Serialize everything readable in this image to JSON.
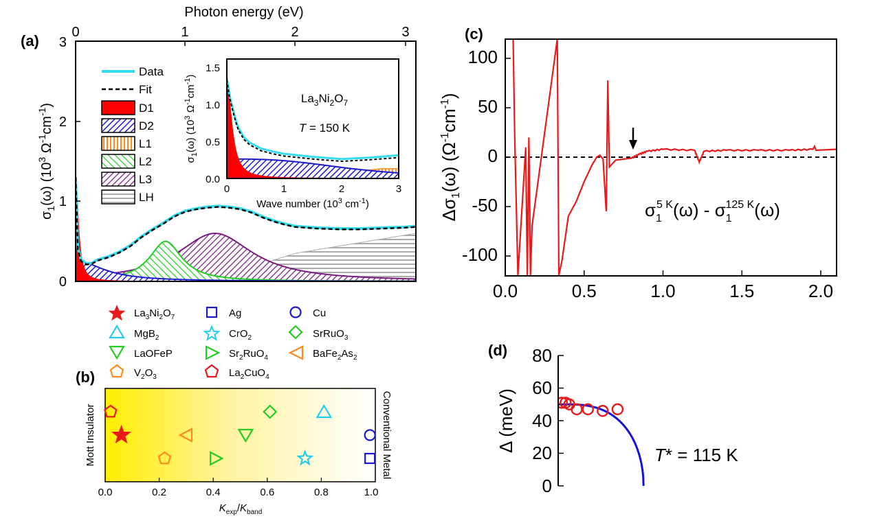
{
  "colors": {
    "data": "#33ddee",
    "fit": "#000000",
    "D1": "#ff0000",
    "D2": "#1a1acc",
    "L1": "#ff8a1a",
    "L2": "#22cc22",
    "L3": "#7a1a80",
    "LH": "#aaaaaa",
    "diff": "#e8191a",
    "gap_data": "#e8191a",
    "gap_fit": "#1111dd",
    "kr_yellow": "#ffee00",
    "cyan": "#22ccee",
    "blue": "#1a1acc",
    "green": "#22cc22",
    "orange": "#ff8a1a",
    "red": "#e8191a"
  },
  "chart_data": [
    {
      "panel": "(a)",
      "type": "area",
      "title": "",
      "top_axis_label": "Photon energy (eV)",
      "top_ticks": [
        "0",
        "1",
        "2",
        "3"
      ],
      "ylabel": "σ1(ω) (10³ Ω⁻¹cm⁻¹)",
      "y_ticks": [
        "0",
        "1",
        "2",
        "3"
      ],
      "xlim_eV": [
        0,
        3.1
      ],
      "ylim": [
        0,
        3
      ],
      "legend": [
        "Data",
        "Fit",
        "D1",
        "D2",
        "L1",
        "L2",
        "L3",
        "LH"
      ],
      "series": [
        {
          "name": "Data",
          "x_eV": [
            0,
            0.02,
            0.05,
            0.1,
            0.15,
            0.2,
            0.3,
            0.4,
            0.5,
            0.6,
            0.7,
            0.8,
            0.9,
            1.0,
            1.1,
            1.2,
            1.3,
            1.4,
            1.5,
            1.6,
            1.7,
            1.8,
            1.9,
            2.0,
            2.2,
            2.4,
            2.6,
            2.8,
            3.0,
            3.1
          ],
          "values": [
            1.3,
            0.42,
            0.27,
            0.22,
            0.23,
            0.27,
            0.31,
            0.37,
            0.45,
            0.56,
            0.65,
            0.73,
            0.82,
            0.88,
            0.91,
            0.93,
            0.94,
            0.93,
            0.91,
            0.87,
            0.81,
            0.76,
            0.72,
            0.69,
            0.67,
            0.66,
            0.66,
            0.67,
            0.68,
            0.69
          ]
        },
        {
          "name": "Fit",
          "x_eV": [
            0,
            0.02,
            0.05,
            0.1,
            0.15,
            0.2,
            0.3,
            0.4,
            0.5,
            0.6,
            0.7,
            0.8,
            0.9,
            1.0,
            1.1,
            1.2,
            1.3,
            1.4,
            1.5,
            1.6,
            1.7,
            1.8,
            1.9,
            2.0,
            2.2,
            2.4,
            2.6,
            2.8,
            3.0,
            3.1
          ],
          "values": [
            1.3,
            0.4,
            0.25,
            0.21,
            0.22,
            0.26,
            0.3,
            0.36,
            0.44,
            0.55,
            0.64,
            0.72,
            0.81,
            0.87,
            0.9,
            0.92,
            0.93,
            0.92,
            0.9,
            0.86,
            0.8,
            0.75,
            0.71,
            0.68,
            0.66,
            0.65,
            0.65,
            0.66,
            0.67,
            0.68
          ]
        },
        {
          "name": "D1",
          "type": "drude",
          "center_eV": 0,
          "amplitude": 1.3,
          "width_eV": 0.03
        },
        {
          "name": "D2",
          "type": "drude",
          "center_eV": 0,
          "amplitude": 0.26,
          "width_eV": 0.3
        },
        {
          "name": "L1",
          "type": "lorentz",
          "center_eV": 0.2,
          "amplitude": 0.15,
          "width_eV": 0.08
        },
        {
          "name": "L2",
          "type": "lorentz",
          "center_eV": 0.82,
          "amplitude": 0.5,
          "width_eV": 0.18
        },
        {
          "name": "L3",
          "type": "lorentz",
          "center_eV": 1.27,
          "amplitude": 0.6,
          "width_eV": 0.42
        },
        {
          "name": "LH",
          "type": "rising",
          "values_at_x_eV": {
            "1.3": 0.05,
            "2.0": 0.35,
            "3.1": 0.6
          }
        }
      ]
    },
    {
      "panel": "(a) inset",
      "type": "area",
      "title": "La3Ni2O7",
      "temperature": "T = 150 K",
      "xlabel": "Wave number (10³ cm⁻¹)",
      "ylabel": "σ1(ω) (10³ Ω⁻¹cm⁻¹)",
      "x_ticks": [
        "0",
        "1",
        "2",
        "3"
      ],
      "y_ticks": [
        "0.0",
        "0.5",
        "1.0",
        "1.5"
      ],
      "xlim": [
        0,
        3
      ],
      "ylim": [
        0,
        1.6
      ],
      "series": [
        {
          "name": "Data",
          "x": [
            0,
            0.05,
            0.1,
            0.15,
            0.2,
            0.3,
            0.4,
            0.5,
            0.6,
            0.8,
            1.0,
            1.5,
            2.0,
            2.5,
            3.0
          ],
          "values": [
            1.35,
            1.1,
            0.95,
            0.8,
            0.68,
            0.55,
            0.48,
            0.44,
            0.4,
            0.36,
            0.33,
            0.29,
            0.26,
            0.28,
            0.31
          ]
        },
        {
          "name": "D1",
          "amplitude": 1.3,
          "width": 0.25
        },
        {
          "name": "D2",
          "plateau": 0.26
        },
        {
          "name": "L1",
          "rise_end": 0.13
        }
      ]
    },
    {
      "panel": "(b)",
      "type": "scatter",
      "xlabel": "Kexp/Kband",
      "x_ticks": [
        "0.0",
        "0.2",
        "0.4",
        "0.6",
        "0.8",
        "1.0"
      ],
      "xlim": [
        0,
        1
      ],
      "left_label": "Mott Insulator",
      "right_label": "Conventional Metal",
      "points": [
        {
          "name": "La3Ni2O7",
          "x": 0.06,
          "row": 2
        },
        {
          "name": "MgB2",
          "x": 0.81,
          "row": 1
        },
        {
          "name": "LaOFeP",
          "x": 0.52,
          "row": 2
        },
        {
          "name": "V2O3",
          "x": 0.22,
          "row": 3
        },
        {
          "name": "Ag",
          "x": 0.98,
          "row": 3
        },
        {
          "name": "CrO2",
          "x": 0.74,
          "row": 3
        },
        {
          "name": "Sr2RuO4",
          "x": 0.41,
          "row": 3
        },
        {
          "name": "La2CuO4",
          "x": 0.02,
          "row": 1
        },
        {
          "name": "Cu",
          "x": 0.98,
          "row": 2
        },
        {
          "name": "SrRuO3",
          "x": 0.61,
          "row": 1
        },
        {
          "name": "BaFe2As2",
          "x": 0.3,
          "row": 2
        }
      ]
    },
    {
      "panel": "(c)",
      "type": "line",
      "ylabel": "Δσ1(ω) (Ω⁻¹cm⁻¹)",
      "x_ticks": [
        "0.0",
        "0.5",
        "1.0",
        "1.5",
        "2.0"
      ],
      "y_ticks": [
        "-100",
        "-50",
        "0",
        "50",
        "100"
      ],
      "xlim": [
        0,
        2.1
      ],
      "ylim": [
        -120,
        120
      ],
      "annotation": "σ1^5K(ω) - σ1^125K(ω)",
      "arrow_at_x": 0.81,
      "series": [
        {
          "name": "Δσ1",
          "x": [
            0.05,
            0.06,
            0.08,
            0.13,
            0.14,
            0.15,
            0.16,
            0.17,
            0.33,
            0.34,
            0.36,
            0.4,
            0.45,
            0.5,
            0.55,
            0.58,
            0.6,
            0.62,
            0.64,
            0.65,
            0.66,
            0.7,
            0.75,
            0.8,
            0.85,
            0.9,
            1.0,
            1.2,
            1.23,
            1.26,
            1.4,
            1.6,
            1.8,
            1.95,
            1.96,
            1.97,
            2.1
          ],
          "values": [
            120,
            20,
            -120,
            10,
            -120,
            20,
            -120,
            -70,
            120,
            -120,
            -105,
            -60,
            -45,
            -25,
            -8,
            0,
            2,
            -2,
            -55,
            78,
            -10,
            -3,
            -2,
            -1,
            3,
            6,
            8,
            7,
            -5,
            6,
            7,
            7,
            7,
            8,
            11,
            7,
            8
          ]
        }
      ]
    },
    {
      "panel": "(d)",
      "type": "scatter",
      "ylabel": "Δ (meV)",
      "y_ticks": [
        "0",
        "20",
        "40",
        "60",
        "80"
      ],
      "xlim_K": [
        0,
        125
      ],
      "ylim": [
        0,
        80
      ],
      "annotation": "T* = 115 K",
      "series": [
        {
          "name": "Δ data",
          "x_K": [
            5,
            10,
            15,
            25,
            40,
            60,
            80
          ],
          "values": [
            51,
            51,
            50,
            47,
            47,
            46,
            47
          ]
        },
        {
          "name": "BCS fit",
          "Tstar_K": 115,
          "delta0": 50
        }
      ]
    }
  ],
  "legend_b": [
    "La3Ni2O7",
    "MgB2",
    "LaOFeP",
    "V2O3",
    "Ag",
    "CrO2",
    "Sr2RuO4",
    "La2CuO4",
    "Cu",
    "SrRuO3",
    "BaFe2As2"
  ]
}
